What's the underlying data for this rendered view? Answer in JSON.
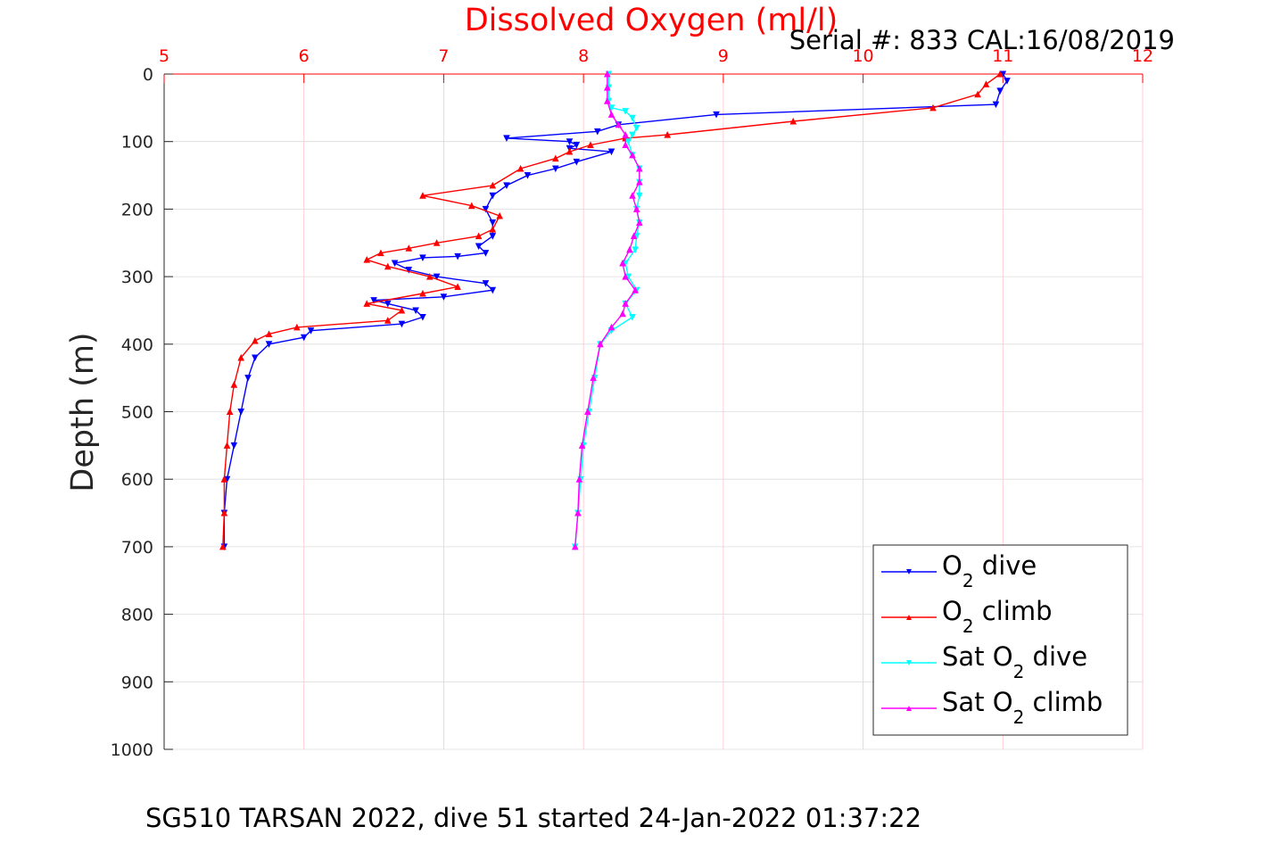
{
  "chart_data": {
    "type": "line",
    "title": "Dissolved Oxygen (ml/l)",
    "subtitle": "Serial #: 833  CAL:16/08/2019",
    "caption": "SG510 TARSAN 2022, dive 51 started 24-Jan-2022 01:37:22",
    "ylabel": "Depth (m)",
    "xlim": [
      5,
      12
    ],
    "ylim": [
      0,
      1000
    ],
    "y_reversed": true,
    "x_axis_position": "top",
    "grid": true,
    "legend_placement": "bottom-right",
    "xticks": [
      5,
      6,
      7,
      8,
      9,
      10,
      11,
      12
    ],
    "yticks": [
      0,
      100,
      200,
      300,
      400,
      500,
      600,
      700,
      800,
      900,
      1000
    ],
    "series": [
      {
        "name": "O2 dive",
        "legend_main": "O",
        "legend_sub": "2",
        "legend_rest": " dive",
        "color": "#0000ff",
        "marker": "triangle-down",
        "points": [
          [
            11.0,
            0
          ],
          [
            11.03,
            10
          ],
          [
            10.98,
            25
          ],
          [
            10.95,
            45
          ],
          [
            8.95,
            60
          ],
          [
            8.25,
            75
          ],
          [
            8.1,
            85
          ],
          [
            7.45,
            95
          ],
          [
            7.9,
            100
          ],
          [
            7.95,
            105
          ],
          [
            7.9,
            110
          ],
          [
            8.2,
            115
          ],
          [
            7.95,
            130
          ],
          [
            7.8,
            140
          ],
          [
            7.6,
            150
          ],
          [
            7.45,
            165
          ],
          [
            7.35,
            180
          ],
          [
            7.3,
            200
          ],
          [
            7.35,
            220
          ],
          [
            7.35,
            240
          ],
          [
            7.25,
            255
          ],
          [
            7.3,
            265
          ],
          [
            7.1,
            270
          ],
          [
            6.85,
            272
          ],
          [
            6.65,
            280
          ],
          [
            6.75,
            290
          ],
          [
            6.95,
            300
          ],
          [
            7.3,
            310
          ],
          [
            7.35,
            320
          ],
          [
            7.0,
            330
          ],
          [
            6.5,
            335
          ],
          [
            6.6,
            340
          ],
          [
            6.8,
            350
          ],
          [
            6.85,
            360
          ],
          [
            6.7,
            370
          ],
          [
            6.05,
            380
          ],
          [
            6.0,
            390
          ],
          [
            5.75,
            400
          ],
          [
            5.65,
            420
          ],
          [
            5.6,
            450
          ],
          [
            5.55,
            500
          ],
          [
            5.5,
            550
          ],
          [
            5.45,
            600
          ],
          [
            5.43,
            650
          ],
          [
            5.43,
            700
          ]
        ]
      },
      {
        "name": "O2 climb",
        "legend_main": "O",
        "legend_sub": "2",
        "legend_rest": " climb",
        "color": "#ff0000",
        "marker": "triangle-up",
        "points": [
          [
            10.98,
            0
          ],
          [
            10.88,
            15
          ],
          [
            10.82,
            30
          ],
          [
            10.5,
            50
          ],
          [
            9.5,
            70
          ],
          [
            8.6,
            90
          ],
          [
            8.3,
            95
          ],
          [
            8.05,
            105
          ],
          [
            7.9,
            115
          ],
          [
            7.8,
            125
          ],
          [
            7.55,
            140
          ],
          [
            7.35,
            165
          ],
          [
            6.85,
            180
          ],
          [
            7.2,
            195
          ],
          [
            7.4,
            210
          ],
          [
            7.35,
            230
          ],
          [
            7.25,
            240
          ],
          [
            6.95,
            250
          ],
          [
            6.75,
            258
          ],
          [
            6.55,
            265
          ],
          [
            6.45,
            275
          ],
          [
            6.6,
            285
          ],
          [
            6.9,
            300
          ],
          [
            7.1,
            315
          ],
          [
            6.85,
            325
          ],
          [
            6.45,
            340
          ],
          [
            6.7,
            350
          ],
          [
            6.6,
            365
          ],
          [
            5.95,
            375
          ],
          [
            5.75,
            385
          ],
          [
            5.65,
            395
          ],
          [
            5.55,
            420
          ],
          [
            5.5,
            460
          ],
          [
            5.47,
            500
          ],
          [
            5.45,
            550
          ],
          [
            5.43,
            600
          ],
          [
            5.43,
            650
          ],
          [
            5.42,
            700
          ]
        ]
      },
      {
        "name": "Sat O2 dive",
        "legend_main": "Sat O",
        "legend_sub": "2",
        "legend_rest": " dive",
        "color": "#00ffff",
        "marker": "triangle-down",
        "points": [
          [
            8.18,
            0
          ],
          [
            8.18,
            20
          ],
          [
            8.18,
            40
          ],
          [
            8.2,
            50
          ],
          [
            8.3,
            55
          ],
          [
            8.35,
            65
          ],
          [
            8.38,
            80
          ],
          [
            8.35,
            90
          ],
          [
            8.32,
            100
          ],
          [
            8.35,
            120
          ],
          [
            8.4,
            140
          ],
          [
            8.4,
            160
          ],
          [
            8.4,
            180
          ],
          [
            8.38,
            200
          ],
          [
            8.4,
            220
          ],
          [
            8.38,
            240
          ],
          [
            8.37,
            260
          ],
          [
            8.3,
            280
          ],
          [
            8.32,
            300
          ],
          [
            8.38,
            320
          ],
          [
            8.3,
            340
          ],
          [
            8.35,
            360
          ],
          [
            8.2,
            380
          ],
          [
            8.12,
            400
          ],
          [
            8.08,
            450
          ],
          [
            8.04,
            500
          ],
          [
            8.0,
            550
          ],
          [
            7.98,
            600
          ],
          [
            7.96,
            650
          ],
          [
            7.94,
            700
          ]
        ]
      },
      {
        "name": "Sat O2 climb",
        "legend_main": "Sat O",
        "legend_sub": "2",
        "legend_rest": " climb",
        "color": "#ff00ff",
        "marker": "triangle-up",
        "points": [
          [
            8.17,
            0
          ],
          [
            8.17,
            20
          ],
          [
            8.17,
            40
          ],
          [
            8.2,
            60
          ],
          [
            8.25,
            75
          ],
          [
            8.3,
            90
          ],
          [
            8.3,
            105
          ],
          [
            8.35,
            120
          ],
          [
            8.4,
            140
          ],
          [
            8.4,
            160
          ],
          [
            8.35,
            180
          ],
          [
            8.38,
            200
          ],
          [
            8.4,
            220
          ],
          [
            8.36,
            240
          ],
          [
            8.33,
            260
          ],
          [
            8.28,
            280
          ],
          [
            8.3,
            300
          ],
          [
            8.37,
            320
          ],
          [
            8.3,
            340
          ],
          [
            8.28,
            355
          ],
          [
            8.2,
            375
          ],
          [
            8.12,
            400
          ],
          [
            8.07,
            450
          ],
          [
            8.03,
            500
          ],
          [
            7.99,
            550
          ],
          [
            7.97,
            600
          ],
          [
            7.96,
            650
          ],
          [
            7.94,
            700
          ]
        ]
      }
    ]
  }
}
